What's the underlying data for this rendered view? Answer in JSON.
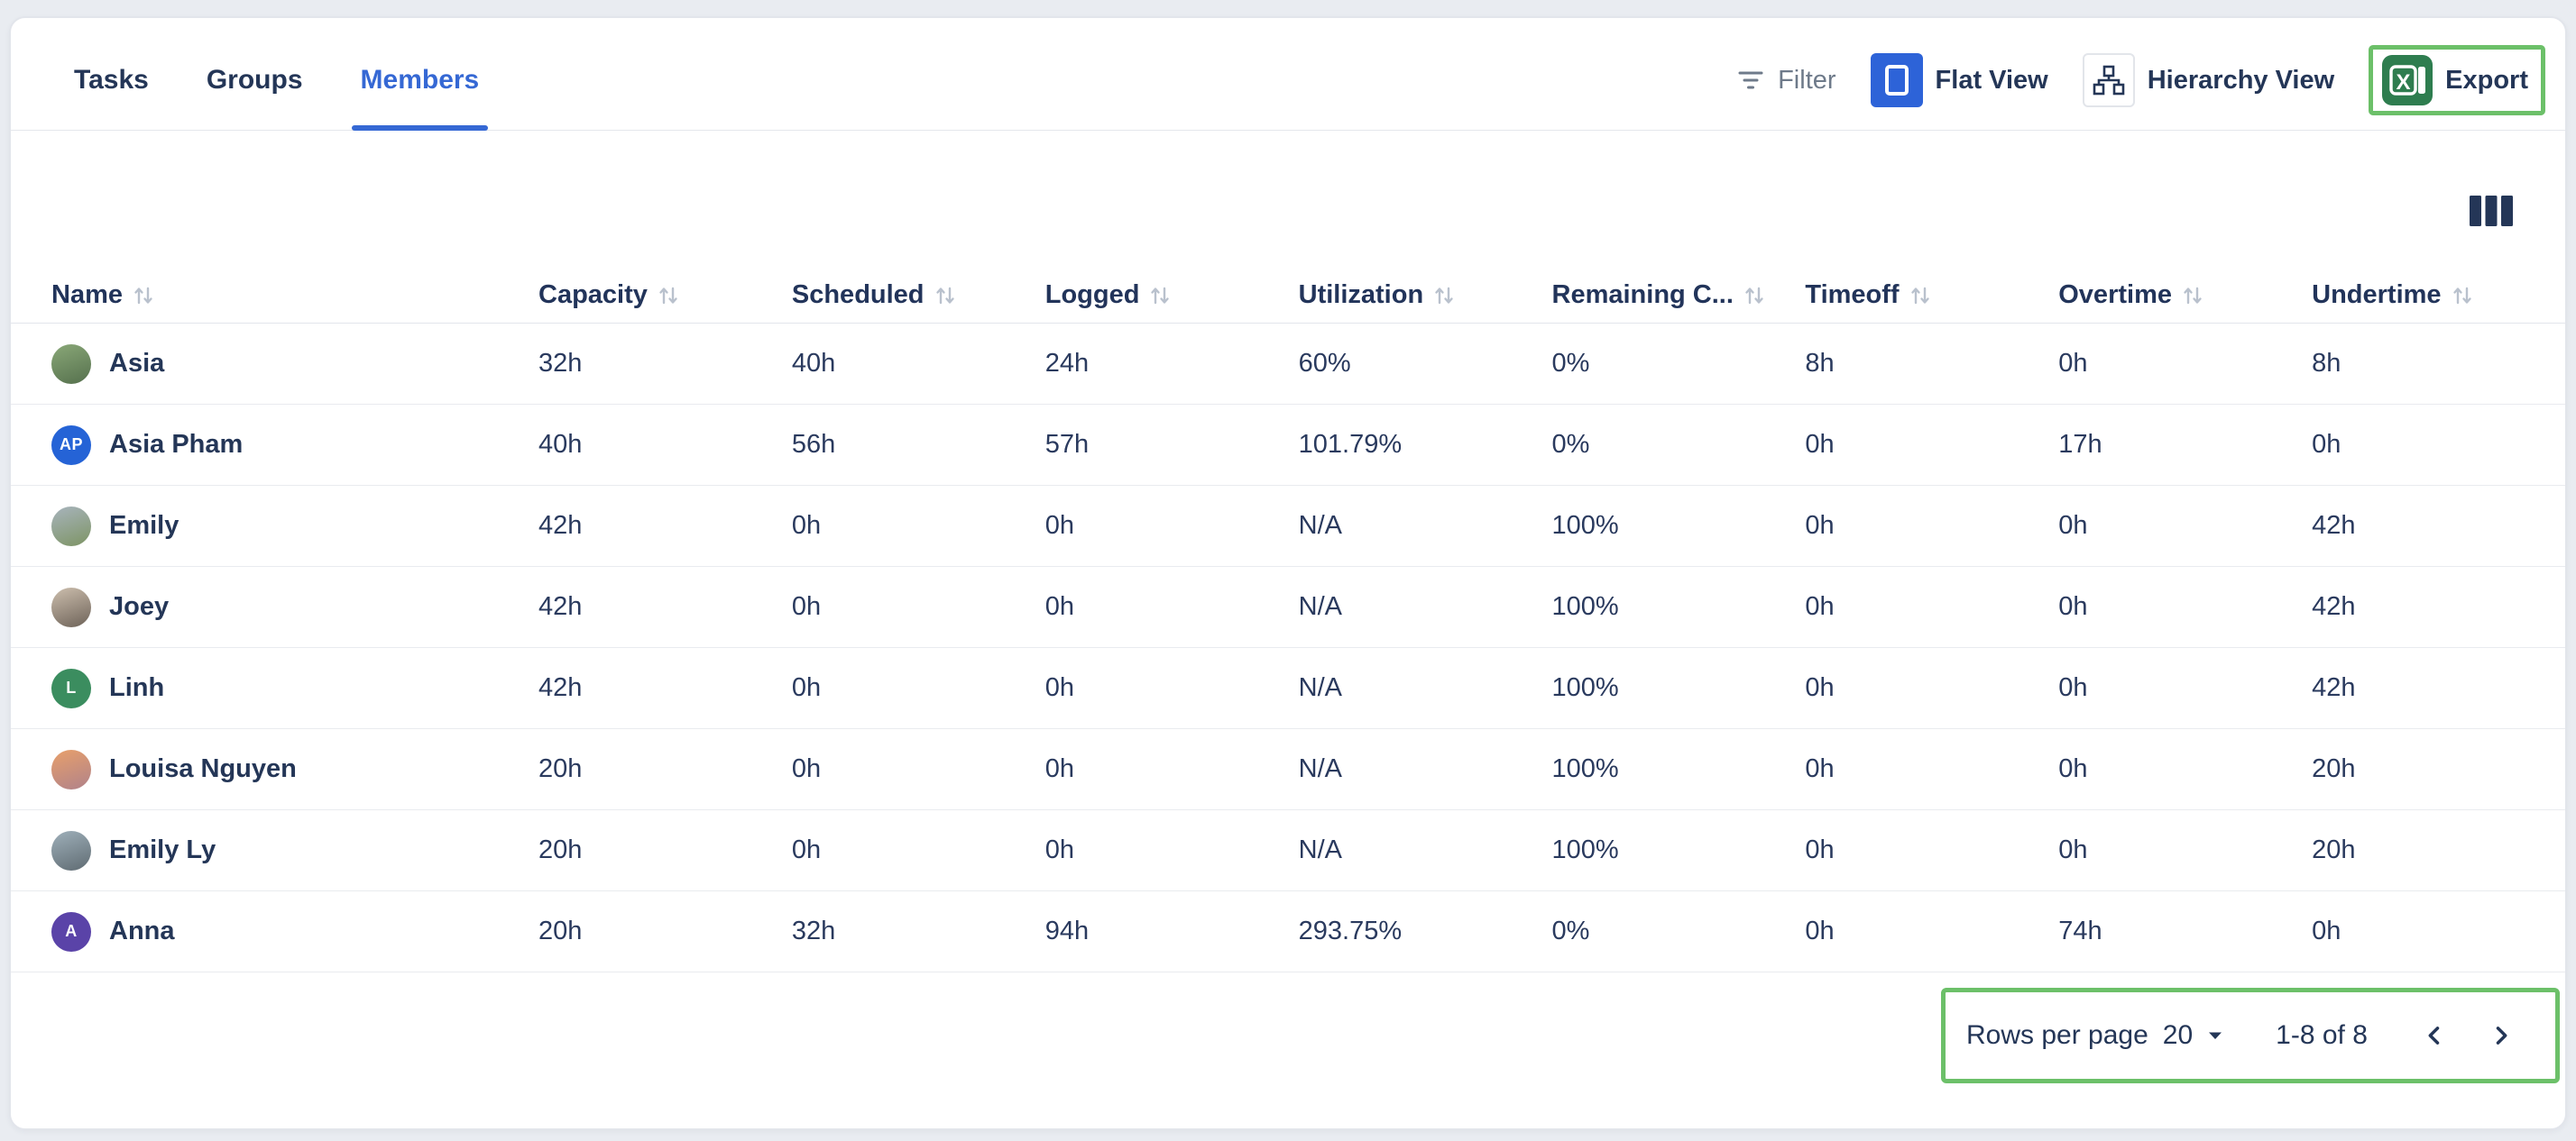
{
  "tabs": [
    {
      "label": "Tasks",
      "active": false
    },
    {
      "label": "Groups",
      "active": false
    },
    {
      "label": "Members",
      "active": true
    }
  ],
  "toolbar": {
    "filter_label": "Filter",
    "flat_view_label": "Flat View",
    "hierarchy_view_label": "Hierarchy View",
    "export_label": "Export"
  },
  "colors": {
    "accent_blue": "#2d63d8",
    "active_tab_blue": "#3568d4",
    "navy_text": "#243657",
    "highlight_green": "#6cc069",
    "excel_green": "#2e7d4f"
  },
  "table": {
    "columns": [
      {
        "key": "name",
        "label": "Name",
        "sortable": true
      },
      {
        "key": "capacity",
        "label": "Capacity",
        "sortable": true
      },
      {
        "key": "scheduled",
        "label": "Scheduled",
        "sortable": true
      },
      {
        "key": "logged",
        "label": "Logged",
        "sortable": true
      },
      {
        "key": "utilization",
        "label": "Utilization",
        "sortable": true
      },
      {
        "key": "remaining_capacity",
        "label": "Remaining C...",
        "sortable": true
      },
      {
        "key": "timeoff",
        "label": "Timeoff",
        "sortable": true
      },
      {
        "key": "overtime",
        "label": "Overtime",
        "sortable": true
      },
      {
        "key": "undertime",
        "label": "Undertime",
        "sortable": true
      }
    ],
    "rows": [
      {
        "name": "Asia",
        "avatar": {
          "type": "photo",
          "colors": [
            "#8aa878",
            "#55704d"
          ]
        },
        "capacity": "32h",
        "scheduled": "40h",
        "logged": "24h",
        "utilization": "60%",
        "remaining_capacity": "0%",
        "timeoff": "8h",
        "overtime": "0h",
        "undertime": "8h"
      },
      {
        "name": "Asia Pham",
        "avatar": {
          "type": "initials",
          "text": "AP",
          "bg": "#2563d6"
        },
        "capacity": "40h",
        "scheduled": "56h",
        "logged": "57h",
        "utilization": "101.79%",
        "remaining_capacity": "0%",
        "timeoff": "0h",
        "overtime": "17h",
        "undertime": "0h"
      },
      {
        "name": "Emily",
        "avatar": {
          "type": "photo",
          "colors": [
            "#a8b4bd",
            "#7d9464"
          ]
        },
        "capacity": "42h",
        "scheduled": "0h",
        "logged": "0h",
        "utilization": "N/A",
        "remaining_capacity": "100%",
        "timeoff": "0h",
        "overtime": "0h",
        "undertime": "42h"
      },
      {
        "name": "Joey",
        "avatar": {
          "type": "photo",
          "colors": [
            "#cdbfae",
            "#6d6258"
          ]
        },
        "capacity": "42h",
        "scheduled": "0h",
        "logged": "0h",
        "utilization": "N/A",
        "remaining_capacity": "100%",
        "timeoff": "0h",
        "overtime": "0h",
        "undertime": "42h"
      },
      {
        "name": "Linh",
        "avatar": {
          "type": "initials",
          "text": "L",
          "bg": "#3b8d5f"
        },
        "capacity": "42h",
        "scheduled": "0h",
        "logged": "0h",
        "utilization": "N/A",
        "remaining_capacity": "100%",
        "timeoff": "0h",
        "overtime": "0h",
        "undertime": "42h"
      },
      {
        "name": "Louisa Nguyen",
        "avatar": {
          "type": "photo",
          "colors": [
            "#e8a06b",
            "#b0828a"
          ]
        },
        "capacity": "20h",
        "scheduled": "0h",
        "logged": "0h",
        "utilization": "N/A",
        "remaining_capacity": "100%",
        "timeoff": "0h",
        "overtime": "0h",
        "undertime": "20h"
      },
      {
        "name": "Emily Ly",
        "avatar": {
          "type": "photo",
          "colors": [
            "#9fb0ba",
            "#5f6b72"
          ]
        },
        "capacity": "20h",
        "scheduled": "0h",
        "logged": "0h",
        "utilization": "N/A",
        "remaining_capacity": "100%",
        "timeoff": "0h",
        "overtime": "0h",
        "undertime": "20h"
      },
      {
        "name": "Anna",
        "avatar": {
          "type": "initials",
          "text": "A",
          "bg": "#5a43a8"
        },
        "capacity": "20h",
        "scheduled": "32h",
        "logged": "94h",
        "utilization": "293.75%",
        "remaining_capacity": "0%",
        "timeoff": "0h",
        "overtime": "74h",
        "undertime": "0h"
      }
    ]
  },
  "pagination": {
    "rows_per_page_label": "Rows per page",
    "rows_per_page_value": "20",
    "range_label": "1-8 of 8"
  }
}
